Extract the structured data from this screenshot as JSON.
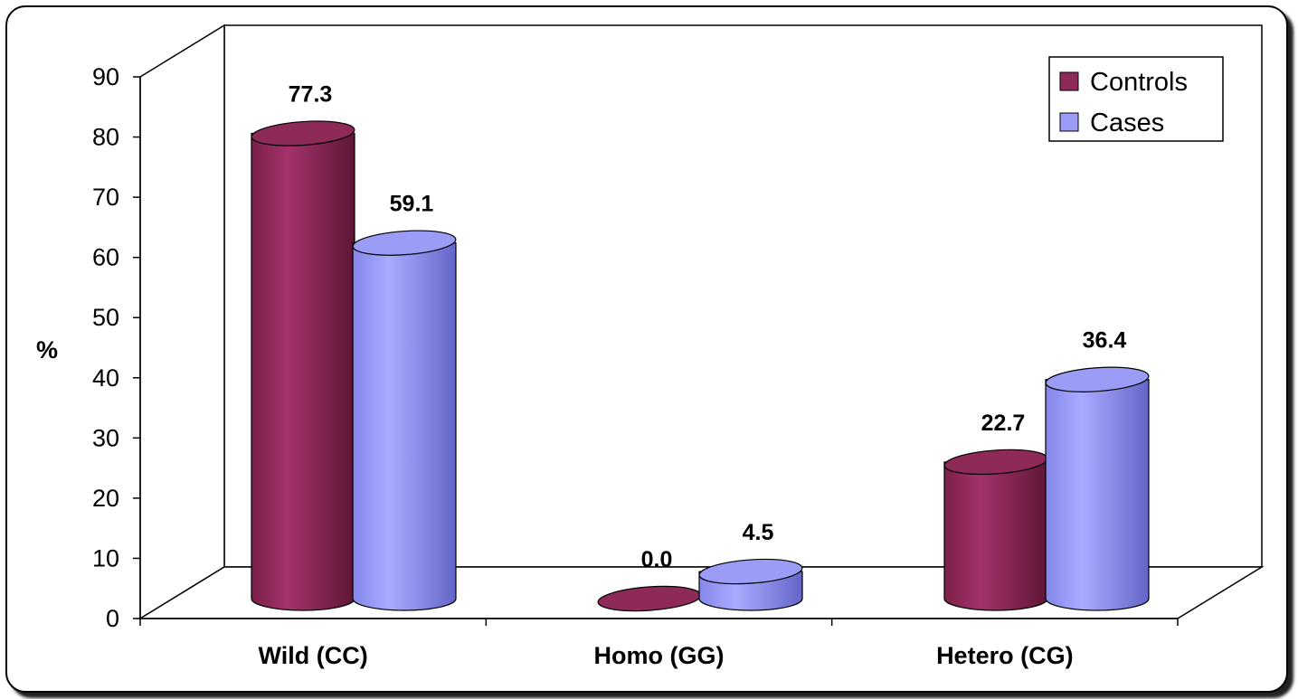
{
  "chart_data": {
    "type": "bar",
    "style": "3d-cylinder",
    "categories": [
      "Wild (CC)",
      "Homo (GG)",
      "Hetero (CG)"
    ],
    "series": [
      {
        "name": "Controls",
        "values": [
          77.3,
          0.0,
          22.7
        ],
        "color": "#8e2a57"
      },
      {
        "name": "Cases",
        "values": [
          59.1,
          4.5,
          36.4
        ],
        "color": "#9a9cf6"
      }
    ],
    "data_labels": [
      [
        "77.3",
        "0.0",
        "22.7"
      ],
      [
        "59.1",
        "4.5",
        "36.4"
      ]
    ],
    "ylabel": "%",
    "ylim": [
      0,
      90
    ],
    "yticks": [
      "0",
      "10",
      "20",
      "30",
      "40",
      "50",
      "60",
      "70",
      "80",
      "90"
    ],
    "legend_position": "top-right",
    "grid": false
  }
}
